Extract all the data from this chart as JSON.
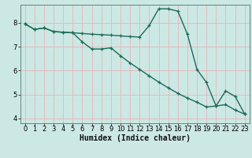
{
  "xlabel": "Humidex (Indice chaleur)",
  "background_color": "#cce8e4",
  "grid_color": "#e8b4b8",
  "line_color": "#1a6b5a",
  "xlim": [
    -0.5,
    23.5
  ],
  "ylim": [
    3.8,
    8.75
  ],
  "yticks": [
    4,
    5,
    6,
    7,
    8
  ],
  "xticks": [
    0,
    1,
    2,
    3,
    4,
    5,
    6,
    7,
    8,
    9,
    10,
    11,
    12,
    13,
    14,
    15,
    16,
    17,
    18,
    19,
    20,
    21,
    22,
    23
  ],
  "line1_x": [
    0,
    1,
    2,
    3,
    4,
    5,
    6,
    7,
    8,
    9,
    10,
    11,
    12,
    13,
    14,
    15,
    16,
    17,
    18,
    19,
    20,
    21,
    22,
    23
  ],
  "line1_y": [
    7.95,
    7.72,
    7.78,
    7.63,
    7.6,
    7.58,
    7.55,
    7.52,
    7.5,
    7.48,
    7.45,
    7.42,
    7.4,
    7.88,
    8.58,
    8.58,
    8.48,
    7.52,
    6.05,
    5.5,
    4.52,
    5.15,
    4.92,
    4.18
  ],
  "line2_x": [
    0,
    1,
    2,
    3,
    4,
    5,
    6,
    7,
    8,
    9,
    10,
    11,
    12,
    13,
    14,
    15,
    16,
    17,
    18,
    19,
    20,
    21,
    22,
    23
  ],
  "line2_y": [
    7.95,
    7.72,
    7.78,
    7.63,
    7.6,
    7.58,
    7.2,
    6.9,
    6.9,
    6.95,
    6.62,
    6.32,
    6.05,
    5.78,
    5.52,
    5.28,
    5.05,
    4.85,
    4.68,
    4.48,
    4.52,
    4.58,
    4.35,
    4.18
  ],
  "markersize": 3.5,
  "linewidth": 1.0,
  "fontsize_label": 7,
  "fontsize_tick": 6
}
